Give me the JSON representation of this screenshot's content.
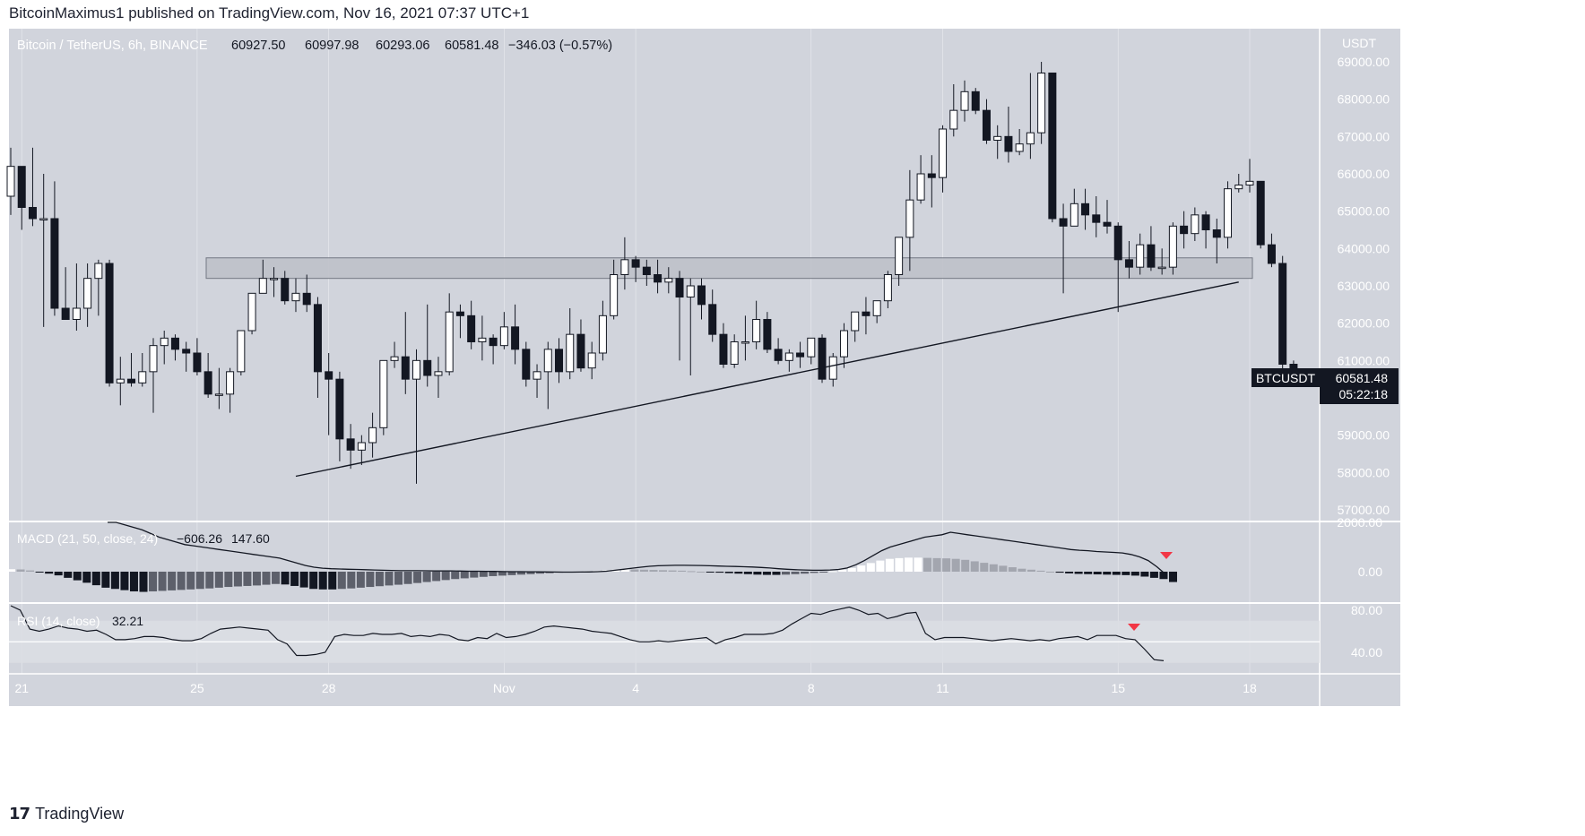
{
  "header": {
    "published_line": "BitcoinMaximus1 published on TradingView.com, Nov 16, 2021 07:37 UTC+1"
  },
  "footer": {
    "brand": "TradingView"
  },
  "legend": {
    "symbol": "Bitcoin / TetherUS, 6h, BINANCE",
    "open": "60927.50",
    "high": "60997.98",
    "low": "60293.06",
    "close": "60581.48",
    "change": "−346.03 (−0.57%)"
  },
  "price_axis": {
    "currency": "USDT",
    "ticks": [
      "69000.00",
      "68000.00",
      "67000.00",
      "66000.00",
      "65000.00",
      "64000.00",
      "63000.00",
      "62000.00",
      "61000.00",
      "59000.00",
      "58000.00",
      "57000.00"
    ]
  },
  "price_tag": {
    "symbol": "BTCUSDT",
    "price": "60581.48",
    "countdown": "05:22:18"
  },
  "macd": {
    "label": "MACD (21, 50, close, 24)",
    "value1": "−606.26",
    "value2": "147.60",
    "ticks": [
      "2000.00",
      "0.00"
    ]
  },
  "rsi": {
    "label": "RSI (14, close)",
    "value": "32.21",
    "ticks": [
      "80.00",
      "40.00"
    ]
  },
  "time_axis": {
    "labels": [
      "21",
      "25",
      "28",
      "Nov",
      "4",
      "8",
      "11",
      "15",
      "18"
    ]
  },
  "colors": {
    "background": "#d1d4dc",
    "grid": "#ffffff",
    "bull_body": "#ffffff",
    "bear_body": "#131722",
    "wick": "#131722",
    "zone_fill": "#bfc2ca",
    "signal_arrow": "#f23645",
    "price_tag_bg": "#131722"
  },
  "chart_data": {
    "type": "candlestick",
    "title": "Bitcoin / TetherUS, 6h, BINANCE",
    "ylabel": "USDT",
    "ylim": [
      56500,
      69500
    ],
    "start": "2021-10-20 18:00",
    "interval_hours": 6,
    "time_ticks": [
      {
        "label": "21",
        "date": "2021-10-21"
      },
      {
        "label": "25",
        "date": "2021-10-25"
      },
      {
        "label": "28",
        "date": "2021-10-28"
      },
      {
        "label": "Nov",
        "date": "2021-11-01"
      },
      {
        "label": "4",
        "date": "2021-11-04"
      },
      {
        "label": "8",
        "date": "2021-11-08"
      },
      {
        "label": "11",
        "date": "2021-11-11"
      },
      {
        "label": "15",
        "date": "2021-11-15"
      },
      {
        "label": "18",
        "date": "2021-11-18"
      }
    ],
    "candles_ohlc": [
      [
        65400,
        66700,
        64900,
        66200
      ],
      [
        66200,
        66200,
        64500,
        65100
      ],
      [
        65100,
        66700,
        64600,
        64800
      ],
      [
        64800,
        66000,
        61900,
        64800
      ],
      [
        64800,
        65800,
        62200,
        62400
      ],
      [
        62400,
        63500,
        62100,
        62100
      ],
      [
        62100,
        63600,
        61800,
        62400
      ],
      [
        62400,
        63600,
        61900,
        63200
      ],
      [
        63200,
        63700,
        62200,
        63600
      ],
      [
        63600,
        63700,
        60300,
        60400
      ],
      [
        60400,
        61100,
        59800,
        60500
      ],
      [
        60500,
        61200,
        60300,
        60400
      ],
      [
        60400,
        61200,
        60300,
        60700
      ],
      [
        60700,
        61600,
        59600,
        61400
      ],
      [
        61400,
        61800,
        60900,
        61600
      ],
      [
        61600,
        61700,
        61000,
        61300
      ],
      [
        61300,
        61500,
        60700,
        61200
      ],
      [
        61200,
        61600,
        60600,
        60700
      ],
      [
        60700,
        61200,
        60000,
        60100
      ],
      [
        60100,
        60800,
        59700,
        60100
      ],
      [
        60100,
        60800,
        59600,
        60700
      ],
      [
        60700,
        61800,
        60600,
        61800
      ],
      [
        61800,
        62600,
        61700,
        62800
      ],
      [
        62800,
        63700,
        62800,
        63200
      ],
      [
        63200,
        63500,
        62700,
        63200
      ],
      [
        63200,
        63400,
        62500,
        62600
      ],
      [
        62600,
        63200,
        62300,
        62800
      ],
      [
        62800,
        63300,
        62300,
        62500
      ],
      [
        62500,
        62700,
        60000,
        60700
      ],
      [
        60700,
        61200,
        59000,
        60500
      ],
      [
        60500,
        60700,
        58300,
        58900
      ],
      [
        58900,
        59300,
        58100,
        58600
      ],
      [
        58600,
        59000,
        58200,
        58800
      ],
      [
        58800,
        59600,
        58400,
        59200
      ],
      [
        59200,
        61000,
        59000,
        61000
      ],
      [
        61000,
        61500,
        60800,
        61100
      ],
      [
        61100,
        62300,
        60100,
        60500
      ],
      [
        60500,
        61300,
        57700,
        61000
      ],
      [
        61000,
        62500,
        60300,
        60600
      ],
      [
        60600,
        61100,
        60000,
        60700
      ],
      [
        60700,
        62800,
        60600,
        62300
      ],
      [
        62300,
        62500,
        61600,
        62200
      ],
      [
        62200,
        62600,
        61300,
        61500
      ],
      [
        61500,
        62200,
        61000,
        61600
      ],
      [
        61600,
        61700,
        60900,
        61400
      ],
      [
        61400,
        62300,
        61300,
        61900
      ],
      [
        61900,
        62500,
        60900,
        61300
      ],
      [
        61300,
        61500,
        60300,
        60500
      ],
      [
        60500,
        60900,
        60000,
        60700
      ],
      [
        60700,
        61500,
        59700,
        61300
      ],
      [
        61300,
        61600,
        60400,
        60700
      ],
      [
        60700,
        62400,
        60500,
        61700
      ],
      [
        61700,
        62100,
        60700,
        60800
      ],
      [
        60800,
        61500,
        60500,
        61200
      ],
      [
        61200,
        62600,
        61000,
        62200
      ],
      [
        62200,
        63700,
        62100,
        63300
      ],
      [
        63300,
        64300,
        62900,
        63700
      ],
      [
        63700,
        63800,
        63100,
        63500
      ],
      [
        63500,
        63700,
        63000,
        63300
      ],
      [
        63300,
        63700,
        62800,
        63100
      ],
      [
        63100,
        63500,
        62800,
        63200
      ],
      [
        63200,
        63400,
        61000,
        62700
      ],
      [
        62700,
        63200,
        60600,
        63000
      ],
      [
        63000,
        63200,
        62100,
        62500
      ],
      [
        62500,
        62900,
        61500,
        61700
      ],
      [
        61700,
        62000,
        60800,
        60900
      ],
      [
        60900,
        61700,
        60800,
        61500
      ],
      [
        61500,
        62200,
        61000,
        61500
      ],
      [
        61500,
        62600,
        61300,
        62100
      ],
      [
        62100,
        62300,
        61200,
        61300
      ],
      [
        61300,
        61600,
        60900,
        61000
      ],
      [
        61000,
        61300,
        60700,
        61200
      ],
      [
        61200,
        61500,
        60800,
        61100
      ],
      [
        61100,
        61600,
        60900,
        61600
      ],
      [
        61600,
        61700,
        60400,
        60500
      ],
      [
        60500,
        61200,
        60300,
        61100
      ],
      [
        61100,
        62000,
        60800,
        61800
      ],
      [
        61800,
        62300,
        61500,
        62300
      ],
      [
        62300,
        62700,
        61700,
        62200
      ],
      [
        62200,
        62500,
        62000,
        62600
      ],
      [
        62600,
        63400,
        62400,
        63300
      ],
      [
        63300,
        64100,
        63000,
        64300
      ],
      [
        64300,
        66100,
        63400,
        65300
      ],
      [
        65300,
        66500,
        65200,
        66000
      ],
      [
        66000,
        66500,
        65100,
        65900
      ],
      [
        65900,
        67300,
        65500,
        67200
      ],
      [
        67200,
        68400,
        67000,
        67700
      ],
      [
        67700,
        68500,
        67400,
        68200
      ],
      [
        68200,
        68300,
        67600,
        67700
      ],
      [
        67700,
        68000,
        66800,
        66900
      ],
      [
        66900,
        67300,
        66400,
        67000
      ],
      [
        67000,
        67800,
        66300,
        66600
      ],
      [
        66600,
        67200,
        66500,
        66800
      ],
      [
        66800,
        68700,
        66400,
        67100
      ],
      [
        67100,
        69000,
        66800,
        68700
      ],
      [
        68700,
        68700,
        64700,
        64800
      ],
      [
        64800,
        65200,
        62800,
        64600
      ],
      [
        64600,
        65600,
        64600,
        65200
      ],
      [
        65200,
        65600,
        64500,
        64900
      ],
      [
        64900,
        65400,
        64300,
        64700
      ],
      [
        64700,
        65300,
        64400,
        64600
      ],
      [
        64600,
        64700,
        62300,
        63700
      ],
      [
        63700,
        64200,
        63200,
        63500
      ],
      [
        63500,
        64400,
        63300,
        64100
      ],
      [
        64100,
        64600,
        63400,
        63500
      ],
      [
        63500,
        64000,
        63300,
        63500
      ],
      [
        63500,
        64700,
        63300,
        64600
      ],
      [
        64600,
        65000,
        64000,
        64400
      ],
      [
        64400,
        65100,
        64200,
        64900
      ],
      [
        64900,
        65000,
        64000,
        64500
      ],
      [
        64500,
        64800,
        63600,
        64300
      ],
      [
        64300,
        65800,
        64000,
        65600
      ],
      [
        65600,
        66000,
        65500,
        65700
      ],
      [
        65700,
        66400,
        65500,
        65800
      ],
      [
        65800,
        65800,
        64000,
        64100
      ],
      [
        64100,
        64400,
        63500,
        63600
      ],
      [
        63600,
        63800,
        60600,
        60900
      ],
      [
        60900,
        61000,
        60300,
        60580
      ]
    ],
    "support_zone": {
      "low": 63200,
      "high": 63750
    },
    "trendline": [
      {
        "date": "2021-10-27 06:00",
        "price": 57900
      },
      {
        "date": "2021-11-17 18:00",
        "price": 63100
      }
    ],
    "macd_panel": {
      "params": "21, 50, close, 24",
      "macd": -606.26,
      "signal": 147.6,
      "ylim": [
        -900,
        2200
      ],
      "macd_line": [
        2200,
        2050,
        1900,
        1800,
        1700,
        1550,
        1400,
        1300,
        1200,
        1100,
        1050,
        1000,
        950,
        900,
        850,
        800,
        750,
        700,
        650,
        600,
        550,
        450,
        350,
        250,
        180,
        140,
        120,
        110,
        100,
        90,
        80,
        70,
        60,
        50,
        40,
        40,
        40,
        35,
        30,
        30,
        30,
        25,
        20,
        20,
        15,
        10,
        5,
        0,
        0,
        -5,
        -5,
        -10,
        -15,
        -20,
        -20,
        -15,
        -10,
        0,
        20,
        60,
        100,
        140,
        180,
        220,
        240,
        250,
        260,
        260,
        255,
        250,
        240,
        230,
        220,
        210,
        200,
        190,
        170,
        150,
        120,
        100,
        80,
        70,
        60,
        60,
        70,
        90,
        150,
        280,
        450,
        650,
        850,
        1000,
        1100,
        1200,
        1300,
        1400,
        1450,
        1500,
        1600,
        1550,
        1500,
        1450,
        1400,
        1350,
        1300,
        1250,
        1200,
        1150,
        1100,
        1050,
        1000,
        950,
        900,
        870,
        850,
        820,
        800,
        780,
        760,
        700,
        600,
        450,
        200,
        -100
      ],
      "histogram": [
        100,
        90,
        50,
        -20,
        -80,
        -150,
        -250,
        -350,
        -450,
        -550,
        -650,
        -700,
        -750,
        -800,
        -820,
        -800,
        -780,
        -760,
        -740,
        -720,
        -700,
        -680,
        -650,
        -620,
        -600,
        -580,
        -560,
        -530,
        -500,
        -520,
        -580,
        -640,
        -700,
        -720,
        -720,
        -700,
        -680,
        -650,
        -620,
        -590,
        -560,
        -530,
        -500,
        -460,
        -420,
        -380,
        -340,
        -300,
        -270,
        -240,
        -210,
        -180,
        -160,
        -140,
        -120,
        -100,
        -80,
        -60,
        -40,
        -20,
        0,
        20,
        40,
        60,
        80,
        100,
        90,
        80,
        70,
        60,
        50,
        40,
        20,
        0,
        -20,
        -40,
        -60,
        -80,
        -100,
        -120,
        -130,
        -130,
        -120,
        -100,
        -80,
        -50,
        -20,
        20,
        80,
        150,
        250,
        350,
        450,
        520,
        550,
        570,
        570,
        560,
        550,
        540,
        520,
        480,
        420,
        360,
        300,
        240,
        180,
        120,
        80,
        40,
        0,
        -40,
        -70,
        -90,
        -100,
        -110,
        -120,
        -130,
        -140,
        -160,
        -200,
        -250,
        -300,
        -420
      ]
    },
    "rsi_panel": {
      "params": "14, close",
      "value": 32.21,
      "ylim": [
        20,
        95
      ],
      "band": [
        30,
        70
      ],
      "midline": 50,
      "rsi_line": [
        88,
        80,
        62,
        60,
        62,
        65,
        63,
        62,
        60,
        61,
        57,
        52,
        52,
        53,
        55,
        55,
        54,
        52,
        51,
        51,
        53,
        58,
        62,
        63,
        64,
        63,
        62,
        61,
        52,
        48,
        37,
        37,
        38,
        40,
        55,
        57,
        56,
        56,
        58,
        57,
        57,
        58,
        55,
        56,
        55,
        57,
        56,
        52,
        51,
        54,
        53,
        58,
        54,
        55,
        57,
        60,
        64,
        65,
        64,
        63,
        62,
        60,
        59,
        58,
        55,
        52,
        50,
        50,
        51,
        50,
        51,
        52,
        53,
        54,
        48,
        52,
        54,
        57,
        57,
        57,
        58,
        61,
        67,
        72,
        77,
        76,
        79,
        81,
        83,
        80,
        76,
        77,
        72,
        74,
        77,
        78,
        58,
        52,
        54,
        54,
        54,
        53,
        52,
        51,
        52,
        53,
        52,
        51,
        52,
        51,
        53,
        54,
        55,
        52,
        56,
        56,
        56,
        53,
        52,
        43,
        33,
        32
      ]
    },
    "signal_markers": [
      {
        "panel": "macd",
        "type": "bearish"
      },
      {
        "panel": "rsi",
        "type": "bearish"
      }
    ]
  }
}
